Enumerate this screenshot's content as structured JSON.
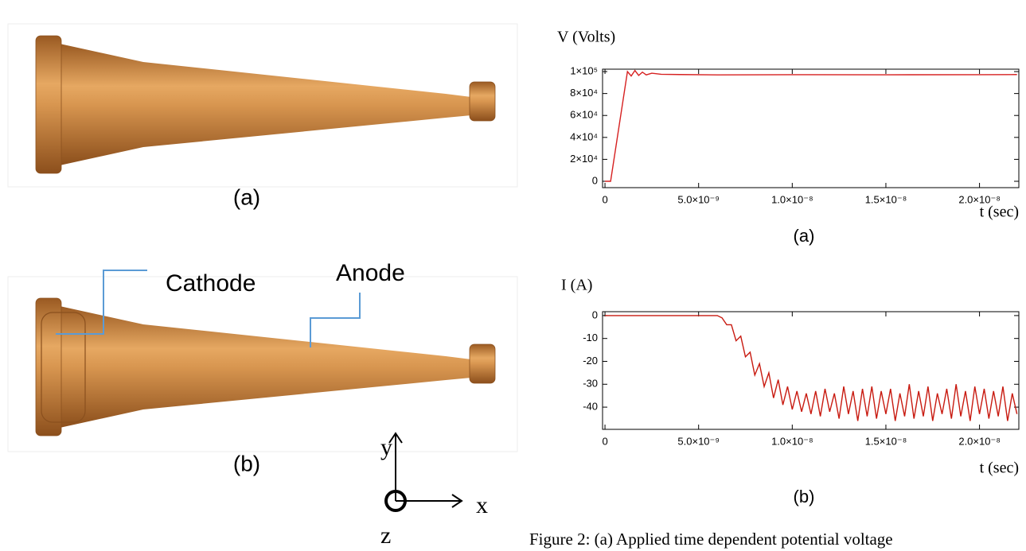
{
  "figure": {
    "left_captions": [
      "(a)",
      "(b)"
    ],
    "cathode": "Cathode",
    "anode": "Anode",
    "axis_labels": {
      "y": "y",
      "x": "x",
      "z": "z"
    },
    "caption": "Figure 2: (a) Applied time dependent potential voltage"
  },
  "chart_data": [
    {
      "type": "line",
      "ylabel": "V (Volts)",
      "xlabel": "t (sec)",
      "caption": "(a)",
      "color": "#d62020",
      "x": [
        0,
        3e-10,
        1.2e-09,
        1.4e-09,
        1.6e-09,
        1.8e-09,
        2e-09,
        2.2e-09,
        2.5e-09,
        3e-09,
        4e-09,
        6e-09,
        1e-08,
        1.5e-08,
        2e-08,
        2.2e-08
      ],
      "values": [
        0,
        0,
        100000,
        96000,
        101000,
        96500,
        99500,
        97000,
        98500,
        97500,
        97300,
        97000,
        97200,
        97100,
        97200,
        97300
      ],
      "xlim": [
        -1.3e-10,
        2.21e-08
      ],
      "ylim": [
        -5800,
        102200
      ],
      "xticks": [
        0,
        {
          "value": 5e-09,
          "label": "5.0×10⁻⁹"
        },
        {
          "value": 1e-08,
          "label": "1.0×10⁻⁸"
        },
        {
          "value": 1.5e-08,
          "label": "1.5×10⁻⁸"
        },
        {
          "value": 2e-08,
          "label": "2.0×10⁻⁸"
        }
      ],
      "yticks": [
        0,
        {
          "value": 20000,
          "label": "2×10⁴"
        },
        {
          "value": 40000,
          "label": "4×10⁴"
        },
        {
          "value": 60000,
          "label": "6×10⁴"
        },
        {
          "value": 80000,
          "label": "8×10⁴"
        },
        {
          "value": 100000,
          "label": "1×10⁵"
        }
      ]
    },
    {
      "type": "line",
      "ylabel": "I (A)",
      "xlabel": "t (sec)",
      "caption": "(b)",
      "color": "#c81a10",
      "x": [
        0,
        6e-09,
        6.25e-09,
        6.5e-09,
        6.75e-09,
        7e-09,
        7.25e-09,
        7.5e-09,
        7.75e-09,
        8e-09,
        8.25e-09,
        8.5e-09,
        8.75e-09,
        9e-09,
        9.25e-09,
        9.5e-09,
        9.75e-09,
        1e-08,
        1.025e-08,
        1.05e-08,
        1.075e-08,
        1.1e-08,
        1.125e-08,
        1.15e-08,
        1.175e-08,
        1.2e-08,
        1.225e-08,
        1.25e-08,
        1.275e-08,
        1.3e-08,
        1.325e-08,
        1.35e-08,
        1.375e-08,
        1.4e-08,
        1.425e-08,
        1.45e-08,
        1.475e-08,
        1.5e-08,
        1.525e-08,
        1.55e-08,
        1.575e-08,
        1.6e-08,
        1.625e-08,
        1.65e-08,
        1.675e-08,
        1.7e-08,
        1.725e-08,
        1.75e-08,
        1.775e-08,
        1.8e-08,
        1.825e-08,
        1.85e-08,
        1.875e-08,
        1.9e-08,
        1.925e-08,
        1.95e-08,
        1.975e-08,
        2e-08,
        2.025e-08,
        2.05e-08,
        2.075e-08,
        2.1e-08,
        2.125e-08,
        2.15e-08,
        2.175e-08,
        2.2e-08
      ],
      "values": [
        0,
        0,
        -1,
        -4,
        -4,
        -11,
        -9,
        -18,
        -16,
        -26,
        -21,
        -31,
        -25,
        -36,
        -28,
        -39,
        -31,
        -41,
        -33,
        -42,
        -34,
        -43,
        -33,
        -44,
        -32,
        -42,
        -34,
        -45,
        -31,
        -43,
        -33,
        -46,
        -32,
        -44,
        -31,
        -45,
        -33,
        -43,
        -32,
        -46,
        -34,
        -44,
        -30,
        -45,
        -33,
        -44,
        -31,
        -46,
        -34,
        -43,
        -32,
        -45,
        -30,
        -44,
        -33,
        -46,
        -31,
        -43,
        -32,
        -45,
        -33,
        -44,
        -31,
        -46,
        -34,
        -43
      ],
      "xlim": [
        -1.3e-10,
        2.21e-08
      ],
      "ylim": [
        -49.7,
        1.7
      ],
      "xticks": [
        0,
        {
          "value": 5e-09,
          "label": "5.0×10⁻⁹"
        },
        {
          "value": 1e-08,
          "label": "1.0×10⁻⁸"
        },
        {
          "value": 1.5e-08,
          "label": "1.5×10⁻⁸"
        },
        {
          "value": 2e-08,
          "label": "2.0×10⁻⁸"
        }
      ],
      "yticks": [
        0,
        -10,
        -20,
        -30,
        -40
      ]
    }
  ]
}
